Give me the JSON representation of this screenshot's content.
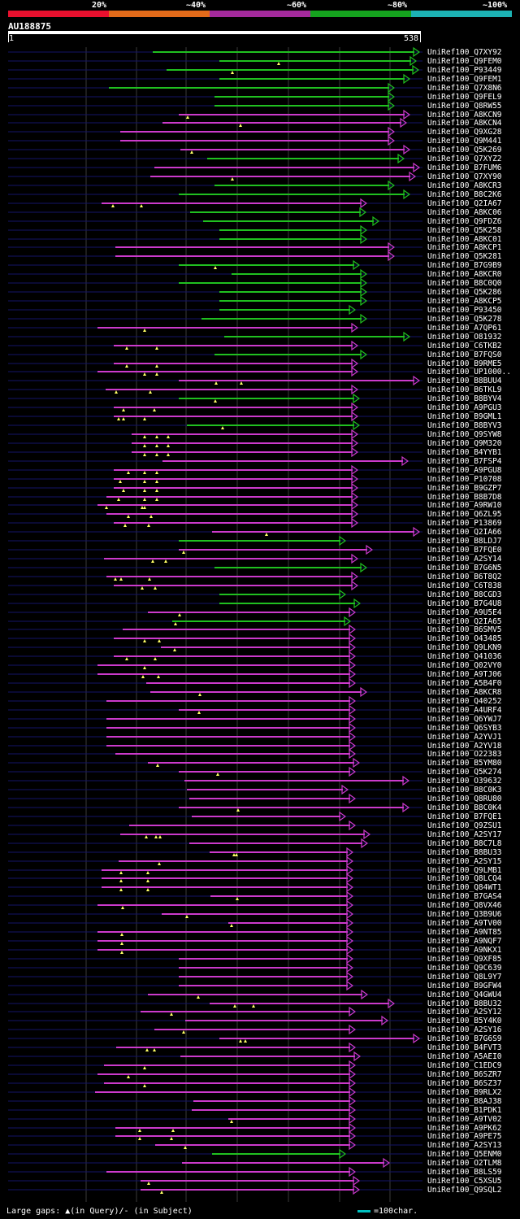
{
  "legend": {
    "segments": [
      {
        "color": "#e8102e"
      },
      {
        "color": "#e26a1a"
      },
      {
        "color": "#a42a9c"
      },
      {
        "color": "#15a31e"
      },
      {
        "color": "#1cb2b4"
      }
    ],
    "labels": [
      "20%",
      "~40%",
      "~60%",
      "~80%",
      "~100%"
    ]
  },
  "query": {
    "id": "AU188875",
    "start": "1",
    "end": "538"
  },
  "colors": {
    "magenta": "#cc3acc",
    "green": "#20c020",
    "faint": "#141468",
    "gap": "#101010"
  },
  "hits": [
    {
      "id": "UniRef100_Q7XY92",
      "s": 188,
      "e": 515,
      "c": "g",
      "m": []
    },
    {
      "id": "UniRef100_Q9FEM0",
      "s": 270,
      "e": 511,
      "c": "g",
      "m": [
        343
      ]
    },
    {
      "id": "UniRef100_P93449",
      "s": 205,
      "e": 514,
      "c": "g",
      "m": [
        286
      ]
    },
    {
      "id": "UniRef100_Q9FEM1",
      "s": 270,
      "e": 503,
      "c": "g",
      "m": []
    },
    {
      "id": "UniRef100_Q7X8N6",
      "s": 134,
      "e": 484,
      "c": "g",
      "m": []
    },
    {
      "id": "UniRef100_Q9FEL9",
      "s": 264,
      "e": 484,
      "c": "g",
      "m": []
    },
    {
      "id": "UniRef100_Q8RW55",
      "s": 264,
      "e": 484,
      "c": "g",
      "m": []
    },
    {
      "id": "UniRef100_A8KCN9",
      "s": 220,
      "e": 503,
      "c": "m",
      "m": [
        231
      ]
    },
    {
      "id": "UniRef100_A8KCN4",
      "s": 200,
      "e": 499,
      "c": "m",
      "m": [
        296
      ]
    },
    {
      "id": "UniRef100_Q9XG28",
      "s": 148,
      "e": 484,
      "c": "m",
      "m": []
    },
    {
      "id": "UniRef100_Q9M441",
      "s": 148,
      "e": 484,
      "c": "m",
      "m": []
    },
    {
      "id": "UniRef100_Q5K269",
      "s": 222,
      "e": 503,
      "c": "m",
      "m": [
        236
      ]
    },
    {
      "id": "UniRef100_Q7XYZ2",
      "s": 255,
      "e": 496,
      "c": "g",
      "m": []
    },
    {
      "id": "UniRef100_B7FUM6",
      "s": 190,
      "e": 515,
      "c": "m",
      "m": []
    },
    {
      "id": "UniRef100_Q7XY90",
      "s": 185,
      "e": 510,
      "c": "m",
      "m": [
        286
      ]
    },
    {
      "id": "UniRef100_A8KCR3",
      "s": 264,
      "e": 484,
      "c": "g",
      "m": []
    },
    {
      "id": "UniRef100_B8C2K6",
      "s": 220,
      "e": 503,
      "c": "g",
      "m": []
    },
    {
      "id": "UniRef100_Q2IA67",
      "s": 125,
      "e": 450,
      "c": "m",
      "m": [
        139,
        174
      ]
    },
    {
      "id": "UniRef100_A8KC06",
      "s": 234,
      "e": 449,
      "c": "g",
      "m": []
    },
    {
      "id": "UniRef100_Q9FDZ6",
      "s": 250,
      "e": 465,
      "c": "g",
      "m": []
    },
    {
      "id": "UniRef100_Q5K258",
      "s": 270,
      "e": 450,
      "c": "g",
      "m": []
    },
    {
      "id": "UniRef100_A8KC01",
      "s": 270,
      "e": 450,
      "c": "g",
      "m": []
    },
    {
      "id": "UniRef100_A8KCP1",
      "s": 142,
      "e": 484,
      "c": "m",
      "m": []
    },
    {
      "id": "UniRef100_Q5K281",
      "s": 142,
      "e": 484,
      "c": "m",
      "m": []
    },
    {
      "id": "UniRef100_B7G9B9",
      "s": 220,
      "e": 441,
      "c": "g",
      "m": [
        265
      ]
    },
    {
      "id": "UniRef100_A8KCR0",
      "s": 285,
      "e": 450,
      "c": "g",
      "m": []
    },
    {
      "id": "UniRef100_B8C0Q0",
      "s": 220,
      "e": 450,
      "c": "g",
      "m": []
    },
    {
      "id": "UniRef100_Q5K286",
      "s": 270,
      "e": 450,
      "c": "g",
      "m": []
    },
    {
      "id": "UniRef100_A8KCP5",
      "s": 270,
      "e": 450,
      "c": "g",
      "m": []
    },
    {
      "id": "UniRef100_P93450",
      "s": 270,
      "e": 436,
      "c": "g",
      "m": []
    },
    {
      "id": "UniRef100_Q5K278",
      "s": 248,
      "e": 450,
      "c": "g",
      "m": []
    },
    {
      "id": "UniRef100_A7QP61",
      "s": 120,
      "e": 439,
      "c": "m",
      "m": [
        178
      ]
    },
    {
      "id": "UniRef100_O81932",
      "s": 276,
      "e": 503,
      "c": "g",
      "m": []
    },
    {
      "id": "UniRef100_C6TKB2",
      "s": 140,
      "e": 439,
      "c": "m",
      "m": [
        156,
        193
      ]
    },
    {
      "id": "UniRef100_B7FQS0",
      "s": 264,
      "e": 450,
      "c": "g",
      "m": []
    },
    {
      "id": "UniRef100_B9RME5",
      "s": 140,
      "e": 439,
      "c": "m",
      "m": [
        156,
        193
      ]
    },
    {
      "id": "UniRef100_UP1000..",
      "s": 120,
      "e": 439,
      "c": "m",
      "m": [
        178,
        193
      ]
    },
    {
      "id": "UniRef100_B8BUU4",
      "s": 220,
      "e": 515,
      "c": "m",
      "m": [
        266,
        297
      ]
    },
    {
      "id": "UniRef100_B6TKL9",
      "s": 130,
      "e": 439,
      "c": "m",
      "m": [
        143,
        185
      ]
    },
    {
      "id": "UniRef100_B8BYV4",
      "s": 220,
      "e": 441,
      "c": "g",
      "m": [
        265
      ]
    },
    {
      "id": "UniRef100_A9PGU3",
      "s": 140,
      "e": 439,
      "c": "m",
      "m": [
        152,
        190
      ]
    },
    {
      "id": "UniRef100_B9GML1",
      "s": 140,
      "e": 439,
      "c": "m",
      "m": [
        146,
        152,
        178
      ]
    },
    {
      "id": "UniRef100_B8BYV3",
      "s": 230,
      "e": 441,
      "c": "g",
      "m": [
        274
      ]
    },
    {
      "id": "UniRef100_Q9SYW8",
      "s": 162,
      "e": 439,
      "c": "m",
      "m": [
        178,
        193,
        207
      ]
    },
    {
      "id": "UniRef100_Q9M320",
      "s": 162,
      "e": 439,
      "c": "m",
      "m": [
        178,
        193,
        207
      ]
    },
    {
      "id": "UniRef100_B4YYB1",
      "s": 162,
      "e": 439,
      "c": "m",
      "m": [
        178,
        193,
        207
      ]
    },
    {
      "id": "UniRef100_B7FSP4",
      "s": 200,
      "e": 501,
      "c": "m",
      "m": []
    },
    {
      "id": "UniRef100_A9PGU8",
      "s": 140,
      "e": 439,
      "c": "m",
      "m": [
        158,
        178,
        193
      ]
    },
    {
      "id": "UniRef100_P10708",
      "s": 140,
      "e": 439,
      "c": "m",
      "m": [
        148,
        178,
        193
      ]
    },
    {
      "id": "UniRef100_B9GZP7",
      "s": 140,
      "e": 439,
      "c": "m",
      "m": [
        152,
        178,
        193
      ]
    },
    {
      "id": "UniRef100_B8B7D8",
      "s": 131,
      "e": 439,
      "c": "m",
      "m": [
        146,
        178,
        193
      ]
    },
    {
      "id": "UniRef100_A9RW10",
      "s": 120,
      "e": 439,
      "c": "m",
      "m": [
        131,
        175,
        178
      ]
    },
    {
      "id": "UniRef100_Q6ZL95",
      "s": 131,
      "e": 439,
      "c": "m",
      "m": [
        158,
        186
      ]
    },
    {
      "id": "UniRef100_P13869",
      "s": 140,
      "e": 439,
      "c": "m",
      "m": [
        154,
        183
      ]
    },
    {
      "id": "UniRef100_Q2IA66",
      "s": 261,
      "e": 515,
      "c": "m",
      "m": [
        328
      ]
    },
    {
      "id": "UniRef100_B8LDJ7",
      "s": 220,
      "e": 424,
      "c": "g",
      "m": []
    },
    {
      "id": "UniRef100_B7FQE0",
      "s": 220,
      "e": 457,
      "c": "m",
      "m": [
        226
      ]
    },
    {
      "id": "UniRef100_A2SY14",
      "s": 128,
      "e": 439,
      "c": "m",
      "m": [
        188,
        204
      ]
    },
    {
      "id": "UniRef100_B7G6N5",
      "s": 264,
      "e": 450,
      "c": "g",
      "m": []
    },
    {
      "id": "UniRef100_B6T8Q2",
      "s": 131,
      "e": 439,
      "c": "m",
      "m": [
        142,
        149,
        184
      ]
    },
    {
      "id": "UniRef100_C6T838",
      "s": 140,
      "e": 439,
      "c": "m",
      "m": [
        175,
        191
      ]
    },
    {
      "id": "UniRef100_B8CGD3",
      "s": 270,
      "e": 424,
      "c": "g",
      "m": []
    },
    {
      "id": "UniRef100_B7G4U8",
      "s": 270,
      "e": 442,
      "c": "g",
      "m": []
    },
    {
      "id": "UniRef100_A9U5E4",
      "s": 182,
      "e": 436,
      "c": "m",
      "m": [
        221
      ]
    },
    {
      "id": "UniRef100_Q2IA65",
      "s": 212,
      "e": 430,
      "c": "g",
      "m": [
        216
      ]
    },
    {
      "id": "UniRef100_B6SMV5",
      "s": 151,
      "e": 436,
      "c": "m",
      "m": []
    },
    {
      "id": "UniRef100_O43485",
      "s": 140,
      "e": 436,
      "c": "m",
      "m": [
        178,
        196
      ]
    },
    {
      "id": "UniRef100_Q9LKN9",
      "s": 198,
      "e": 436,
      "c": "m",
      "m": [
        215
      ]
    },
    {
      "id": "UniRef100_Q41036",
      "s": 140,
      "e": 436,
      "c": "m",
      "m": [
        156,
        191
      ]
    },
    {
      "id": "UniRef100_Q02VY0",
      "s": 120,
      "e": 436,
      "c": "m",
      "m": [
        178
      ]
    },
    {
      "id": "UniRef100_A9TJ06",
      "s": 120,
      "e": 436,
      "c": "m",
      "m": [
        176,
        195
      ]
    },
    {
      "id": "UniRef100_A5B4F0",
      "s": 180,
      "e": 436,
      "c": "m",
      "m": []
    },
    {
      "id": "UniRef100_A8KCR8",
      "s": 185,
      "e": 450,
      "c": "m",
      "m": [
        246
      ]
    },
    {
      "id": "UniRef100_Q40252",
      "s": 131,
      "e": 436,
      "c": "m",
      "m": []
    },
    {
      "id": "UniRef100_A4URF4",
      "s": 220,
      "e": 436,
      "c": "m",
      "m": [
        245
      ]
    },
    {
      "id": "UniRef100_Q6YWJ7",
      "s": 131,
      "e": 436,
      "c": "m",
      "m": []
    },
    {
      "id": "UniRef100_Q6SYB3",
      "s": 131,
      "e": 436,
      "c": "m",
      "m": []
    },
    {
      "id": "UniRef100_A2YVJ1",
      "s": 131,
      "e": 436,
      "c": "m",
      "m": []
    },
    {
      "id": "UniRef100_A2YV18",
      "s": 131,
      "e": 436,
      "c": "m",
      "m": []
    },
    {
      "id": "UniRef100_O22383",
      "s": 142,
      "e": 436,
      "c": "m",
      "m": []
    },
    {
      "id": "UniRef100_B5YM80",
      "s": 182,
      "e": 441,
      "c": "m",
      "m": [
        194
      ]
    },
    {
      "id": "UniRef100_Q5K274",
      "s": 220,
      "e": 436,
      "c": "m",
      "m": [
        268
      ]
    },
    {
      "id": "UniRef100_O39632",
      "s": 227,
      "e": 502,
      "c": "m",
      "m": []
    },
    {
      "id": "UniRef100_B8C0K3",
      "s": 230,
      "e": 427,
      "c": "m",
      "m": []
    },
    {
      "id": "UniRef100_Q8RU80",
      "s": 233,
      "e": 436,
      "c": "m",
      "m": []
    },
    {
      "id": "UniRef100_B8C0K4",
      "s": 220,
      "e": 502,
      "c": "m",
      "m": [
        293
      ]
    },
    {
      "id": "UniRef100_B7FQE1",
      "s": 236,
      "e": 424,
      "c": "m",
      "m": []
    },
    {
      "id": "UniRef100_Q9ZSU1",
      "s": 159,
      "e": 436,
      "c": "m",
      "m": []
    },
    {
      "id": "UniRef100_A2SY17",
      "s": 148,
      "e": 454,
      "c": "m",
      "m": [
        180,
        192,
        197
      ]
    },
    {
      "id": "UniRef100_B8C7L8",
      "s": 233,
      "e": 451,
      "c": "m",
      "m": []
    },
    {
      "id": "UniRef100_B8BU33",
      "s": 258,
      "e": 433,
      "c": "m",
      "m": [
        288,
        291
      ]
    },
    {
      "id": "UniRef100_A2SY15",
      "s": 146,
      "e": 433,
      "c": "m",
      "m": [
        196
      ]
    },
    {
      "id": "UniRef100_Q9LMB1",
      "s": 125,
      "e": 433,
      "c": "m",
      "m": [
        149,
        182
      ]
    },
    {
      "id": "UniRef100_Q8LCQ4",
      "s": 125,
      "e": 433,
      "c": "m",
      "m": [
        149,
        182
      ]
    },
    {
      "id": "UniRef100_Q84WT1",
      "s": 125,
      "e": 433,
      "c": "m",
      "m": [
        149,
        182
      ]
    },
    {
      "id": "UniRef100_B7GAS4",
      "s": 259,
      "e": 433,
      "c": "m",
      "m": [
        292
      ]
    },
    {
      "id": "UniRef100_Q8VX46",
      "s": 120,
      "e": 433,
      "c": "m",
      "m": [
        151
      ]
    },
    {
      "id": "UniRef100_Q3B9U6",
      "s": 199,
      "e": 433,
      "c": "m",
      "m": [
        230
      ]
    },
    {
      "id": "UniRef100_A9TV00",
      "s": 281,
      "e": 433,
      "c": "m",
      "m": [
        285
      ]
    },
    {
      "id": "UniRef100_A9NT85",
      "s": 120,
      "e": 433,
      "c": "m",
      "m": [
        150
      ]
    },
    {
      "id": "UniRef100_A9NQF7",
      "s": 120,
      "e": 433,
      "c": "m",
      "m": [
        150
      ]
    },
    {
      "id": "UniRef100_A9NKX1",
      "s": 120,
      "e": 433,
      "c": "m",
      "m": [
        150
      ]
    },
    {
      "id": "UniRef100_Q9XF85",
      "s": 220,
      "e": 433,
      "c": "m",
      "m": []
    },
    {
      "id": "UniRef100_Q9C639",
      "s": 220,
      "e": 433,
      "c": "m",
      "m": []
    },
    {
      "id": "UniRef100_Q8L9Y7",
      "s": 220,
      "e": 433,
      "c": "m",
      "m": []
    },
    {
      "id": "UniRef100_B9GFW4",
      "s": 220,
      "e": 433,
      "c": "m",
      "m": []
    },
    {
      "id": "UniRef100_Q4GWU4",
      "s": 182,
      "e": 451,
      "c": "m",
      "m": [
        244
      ]
    },
    {
      "id": "UniRef100_B8BU32",
      "s": 258,
      "e": 484,
      "c": "m",
      "m": [
        289,
        312
      ]
    },
    {
      "id": "UniRef100_A2SY12",
      "s": 173,
      "e": 436,
      "c": "m",
      "m": [
        211
      ]
    },
    {
      "id": "UniRef100_B5Y4K0",
      "s": 228,
      "e": 476,
      "c": "m",
      "m": []
    },
    {
      "id": "UniRef100_A2SY16",
      "s": 190,
      "e": 436,
      "c": "m",
      "m": [
        226
      ]
    },
    {
      "id": "UniRef100_B7G6S9",
      "s": 270,
      "e": 515,
      "c": "m",
      "m": [
        296,
        302
      ]
    },
    {
      "id": "UniRef100_B4FVT3",
      "s": 143,
      "e": 436,
      "c": "m",
      "m": [
        181,
        190
      ]
    },
    {
      "id": "UniRef100_A5AEI0",
      "s": 222,
      "e": 442,
      "c": "m",
      "m": []
    },
    {
      "id": "UniRef100_C1EDC9",
      "s": 128,
      "e": 436,
      "c": "m",
      "m": [
        178
      ]
    },
    {
      "id": "UniRef100_B6SZR7",
      "s": 120,
      "e": 436,
      "c": "m",
      "m": [
        158
      ]
    },
    {
      "id": "UniRef100_B6SZ37",
      "s": 128,
      "e": 436,
      "c": "m",
      "m": [
        178
      ]
    },
    {
      "id": "UniRef100_B9RLX2",
      "s": 117,
      "e": 436,
      "c": "m",
      "m": []
    },
    {
      "id": "UniRef100_B8AJ38",
      "s": 238,
      "e": 436,
      "c": "m",
      "m": []
    },
    {
      "id": "UniRef100_B1PDK1",
      "s": 236,
      "e": 436,
      "c": "m",
      "m": []
    },
    {
      "id": "UniRef100_A9TV02",
      "s": 281,
      "e": 436,
      "c": "m",
      "m": [
        285
      ]
    },
    {
      "id": "UniRef100_A9PK62",
      "s": 142,
      "e": 436,
      "c": "m",
      "m": [
        172,
        213
      ]
    },
    {
      "id": "UniRef100_A9PE75",
      "s": 142,
      "e": 436,
      "c": "m",
      "m": [
        172,
        211
      ]
    },
    {
      "id": "UniRef100_A2SY13",
      "s": 191,
      "e": 436,
      "c": "m",
      "m": [
        228
      ]
    },
    {
      "id": "UniRef100_Q5ENM0",
      "s": 261,
      "e": 424,
      "c": "g",
      "m": []
    },
    {
      "id": "UniRef100_O2TLM8",
      "s": 224,
      "e": 478,
      "c": "m",
      "m": []
    },
    {
      "id": "UniRef100_B8LS59",
      "s": 131,
      "e": 436,
      "c": "m",
      "m": []
    },
    {
      "id": "UniRef100_C5XSU5",
      "s": 173,
      "e": 441,
      "c": "m",
      "m": [
        183
      ]
    },
    {
      "id": "UniRef100_Q9SQL2",
      "s": 173,
      "e": 441,
      "c": "m",
      "m": [
        199
      ]
    }
  ],
  "footer": {
    "gaps_label": "Large gaps: ▲(in Query)/- (in Subject)",
    "scale_label": "=100char."
  }
}
